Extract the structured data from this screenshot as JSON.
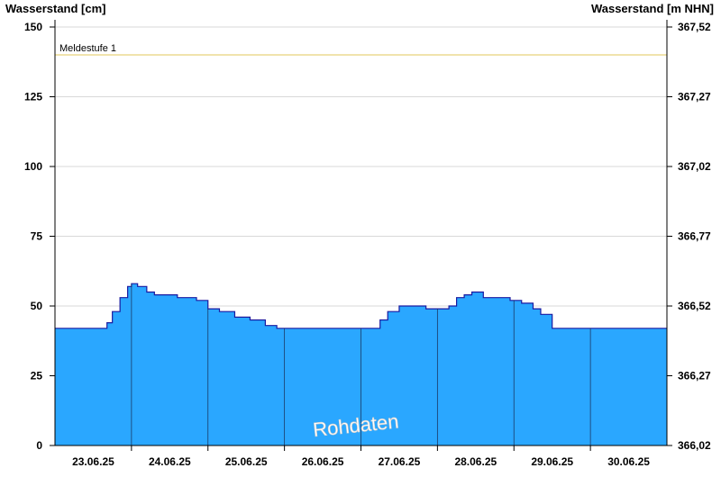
{
  "colors": {
    "fill": "#2aa7ff",
    "line": "#1a1aa0",
    "grid": "#d9d9d9",
    "threshold": "#e6d27a",
    "axis": "#000000"
  },
  "chart_data": {
    "type": "area",
    "ylabel_left": "Wasserstand [cm]",
    "ylabel_right": "Wasserstand [m NHN]",
    "ylim": [
      0,
      150
    ],
    "yticks_left": [
      0,
      25,
      50,
      75,
      100,
      125,
      150
    ],
    "yticks_right": [
      "366,02",
      "366,27",
      "366,52",
      "366,77",
      "367,02",
      "367,27",
      "367,52"
    ],
    "xlim": [
      0,
      8
    ],
    "xtick_labels": [
      "23.06.25",
      "24.06.25",
      "25.06.25",
      "26.06.25",
      "27.06.25",
      "28.06.25",
      "29.06.25",
      "30.06.25"
    ],
    "grid": true,
    "threshold": {
      "label": "Meldestufe 1",
      "value": 140
    },
    "watermark": "Rohdaten",
    "series": [
      {
        "x": [
          0,
          0.65,
          0.68,
          0.75,
          0.85,
          0.95,
          1.0,
          1.08,
          1.2,
          1.3,
          1.45,
          1.6,
          1.75,
          1.85,
          2.0,
          2.15,
          2.35,
          2.55,
          2.75,
          2.9,
          3.0,
          3.5,
          4.0,
          4.2,
          4.25,
          4.35,
          4.5,
          4.7,
          4.85,
          5.0,
          5.15,
          5.25,
          5.35,
          5.45,
          5.6,
          5.75,
          5.95,
          6.0,
          6.1,
          6.25,
          6.35,
          6.5,
          7.0,
          7.5,
          8.0
        ],
        "y": [
          42,
          42,
          44,
          48,
          53,
          57,
          58,
          57,
          55,
          54,
          54,
          53,
          53,
          52,
          49,
          48,
          46,
          45,
          43,
          42,
          42,
          42,
          42,
          42,
          45,
          48,
          50,
          50,
          49,
          49,
          50,
          53,
          54,
          55,
          53,
          53,
          52,
          52,
          51,
          49,
          47,
          42,
          42,
          42,
          42
        ]
      }
    ]
  }
}
